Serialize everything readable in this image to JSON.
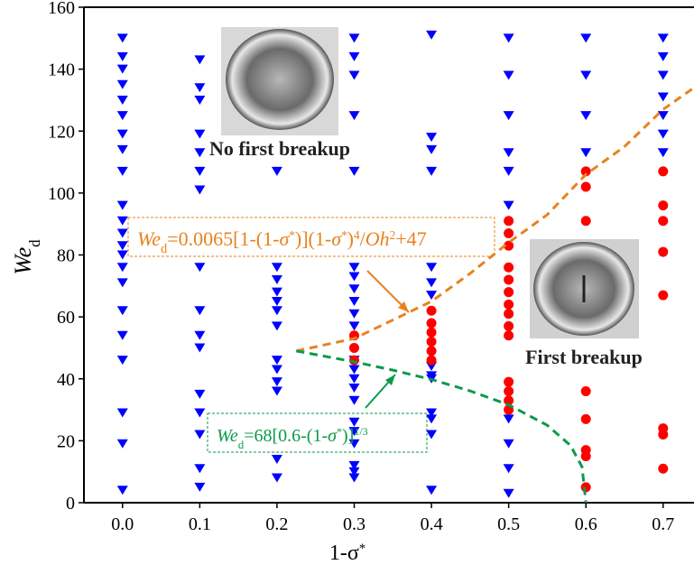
{
  "chart_data": {
    "type": "scatter",
    "xlabel": [
      {
        "text": "1-σ"
      },
      {
        "text": "*",
        "style": "sup"
      }
    ],
    "ylabel": [
      {
        "text": "We",
        "style": "italic"
      },
      {
        "text": "d",
        "style": "sub"
      }
    ],
    "xlim": [
      -0.05,
      0.74
    ],
    "ylim": [
      0,
      160
    ],
    "xticks": [
      {
        "value": 0,
        "label": "0.0"
      },
      0.1,
      0.2,
      0.3,
      0.4,
      0.5,
      0.6,
      0.7
    ],
    "yticks": [
      0,
      20,
      40,
      60,
      80,
      100,
      120,
      140,
      160
    ],
    "labels": [
      "No first breakup",
      "First breakup"
    ],
    "series": [
      {
        "type": "scatter",
        "marker": "triangle",
        "color": "#0000ff",
        "x": [
          0,
          0,
          0,
          0,
          0,
          0,
          0,
          0,
          0,
          0,
          0,
          0,
          0,
          0,
          0,
          0,
          0,
          0,
          0,
          0,
          0,
          0,
          0.1,
          0.1,
          0.1,
          0.1,
          0.1,
          0.1,
          0.1,
          0.1,
          0.1,
          0.1,
          0.1,
          0.1,
          0.1,
          0.1,
          0.1,
          0.1,
          0.2,
          0.2,
          0.2,
          0.2,
          0.2,
          0.2,
          0.2,
          0.2,
          0.2,
          0.2,
          0.2,
          0.2,
          0.2,
          0.3,
          0.3,
          0.3,
          0.3,
          0.3,
          0.3,
          0.3,
          0.3,
          0.3,
          0.3,
          0.3,
          0.3,
          0.3,
          0.3,
          0.3,
          0.3,
          0.3,
          0.3,
          0.3,
          0.3,
          0.3,
          0.3,
          0.4,
          0.4,
          0.4,
          0.4,
          0.4,
          0.4,
          0.4,
          0.4,
          0.4,
          0.4,
          0.4,
          0.4,
          0.4,
          0.4,
          0.5,
          0.5,
          0.5,
          0.5,
          0.5,
          0.5,
          0.5,
          0.5,
          0.5,
          0.5,
          0.6,
          0.6,
          0.6,
          0.6,
          0.7,
          0.7,
          0.7,
          0.7,
          0.7,
          0.7,
          0.7
        ],
        "values": [
          150,
          144,
          140,
          135,
          130,
          125,
          119,
          114,
          107,
          96,
          91,
          87,
          83,
          80,
          76,
          71,
          62,
          54,
          46,
          29,
          19,
          4,
          143,
          134,
          130,
          119,
          113,
          107,
          101,
          76,
          62,
          54,
          50,
          35,
          29,
          22,
          11,
          5,
          107,
          76,
          72,
          68,
          65,
          62,
          57,
          46,
          43,
          39,
          36,
          14,
          8,
          150,
          144,
          138,
          125,
          107,
          76,
          73,
          69,
          65,
          61,
          57,
          46,
          43,
          40,
          37,
          33,
          26,
          23,
          19,
          12,
          10,
          8,
          151,
          118,
          114,
          107,
          76,
          71,
          67,
          44,
          41,
          40,
          29,
          27,
          22,
          4,
          150,
          138,
          125,
          113,
          107,
          96,
          27,
          19,
          11,
          3,
          150,
          138,
          125,
          113,
          150,
          144,
          138,
          131,
          125,
          119,
          113
        ]
      },
      {
        "type": "scatter",
        "marker": "circle",
        "color": "#ff0000",
        "x": [
          0.3,
          0.3,
          0.3,
          0.4,
          0.4,
          0.4,
          0.4,
          0.4,
          0.4,
          0.5,
          0.5,
          0.5,
          0.5,
          0.5,
          0.5,
          0.5,
          0.5,
          0.5,
          0.5,
          0.5,
          0.5,
          0.5,
          0.5,
          0.6,
          0.6,
          0.6,
          0.6,
          0.6,
          0.6,
          0.6,
          0.6,
          0.7,
          0.7,
          0.7,
          0.7,
          0.7,
          0.7,
          0.7,
          0.7
        ],
        "values": [
          54,
          50,
          46,
          62,
          58,
          55,
          52,
          49,
          46,
          91,
          87,
          83,
          76,
          72,
          68,
          64,
          61,
          57,
          54,
          39,
          36,
          33,
          30,
          107,
          102,
          91,
          36,
          27,
          17,
          15,
          5,
          107,
          96,
          91,
          81,
          67,
          24,
          22,
          11
        ]
      },
      {
        "type": "line",
        "dash": true,
        "color": "#e8821e",
        "x": [
          0.225,
          0.3,
          0.35,
          0.4,
          0.45,
          0.5,
          0.55,
          0.6,
          0.65,
          0.7,
          0.74
        ],
        "values": [
          49,
          53,
          59,
          65,
          74,
          84,
          93,
          106,
          115,
          127,
          134
        ]
      },
      {
        "type": "line",
        "dash": true,
        "color": "#0a9a4a",
        "x": [
          0.225,
          0.3,
          0.35,
          0.4,
          0.45,
          0.5,
          0.55,
          0.58,
          0.595,
          0.6
        ],
        "values": [
          49,
          45.5,
          42.8,
          39.8,
          36.1,
          31.6,
          25,
          18.5,
          11.6,
          0
        ]
      }
    ],
    "equations": [
      {
        "color": "#e8821e",
        "parts": [
          {
            "text": "We",
            "style": "italic"
          },
          {
            "text": "d",
            "style": "sub"
          },
          {
            "text": "=0.0065[1-(1-"
          },
          {
            "text": "σ",
            "style": "italic"
          },
          {
            "text": "*",
            "style": "sup"
          },
          {
            "text": ")](1-"
          },
          {
            "text": "σ",
            "style": "italic"
          },
          {
            "text": "*",
            "style": "sup"
          },
          {
            "text": ")"
          },
          {
            "text": "4",
            "style": "sup"
          },
          {
            "text": "/"
          },
          {
            "text": "Oh",
            "style": "italic"
          },
          {
            "text": "2",
            "style": "sup"
          },
          {
            "text": "+47"
          }
        ]
      },
      {
        "color": "#0a9a4a",
        "parts": [
          {
            "text": "We",
            "style": "italic"
          },
          {
            "text": "d",
            "style": "sub"
          },
          {
            "text": "=68[0.6-(1-"
          },
          {
            "text": "σ",
            "style": "italic"
          },
          {
            "text": "*",
            "style": "sup"
          },
          {
            "text": ")]"
          },
          {
            "text": "1/3",
            "style": "sup"
          }
        ]
      }
    ]
  }
}
